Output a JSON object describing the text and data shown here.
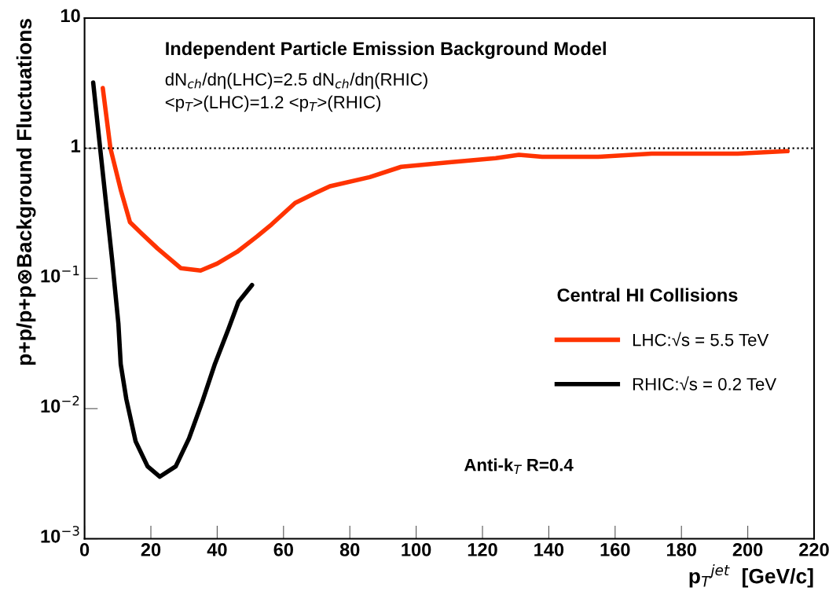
{
  "chart_data": {
    "type": "line",
    "title": "Independent Particle Emission Background Model",
    "subtitle": "dN$_{ch}$/dη(LHC)=2.5 dN$_{ch}$/dη(RHIC)\n<p$_{T}$>(LHC)=1.2 <p$_{T}$>(RHIC)",
    "xlabel": "p$_{T}$$^{jet}$  [GeV/c]",
    "ylabel": "p+p/p+p⊗Background Fluctuations",
    "legend_title": "Central HI Collisions",
    "annotations": [
      "Anti-k$_{T}$ R=0.4"
    ],
    "log": "y",
    "xlim": [
      0,
      220
    ],
    "xticks": [
      0,
      20,
      40,
      60,
      80,
      100,
      120,
      140,
      160,
      180,
      200,
      220
    ],
    "ylim": [
      0.001,
      10
    ],
    "yticks": [
      {
        "value": 0.001,
        "label": "10$^{−3}$"
      },
      {
        "value": 0.01,
        "label": "10$^{−2}$"
      },
      {
        "value": 0.1,
        "label": "10$^{−1}$"
      },
      1,
      10
    ],
    "grid": false,
    "legend": "right",
    "line_style": "solid",
    "marker": "none",
    "ref_lines": [
      {
        "axis": "y",
        "value": 1,
        "line_style": "dotted",
        "color": "#000000"
      }
    ],
    "series": [
      {
        "name": "LHC:√s = 5.5 TeV",
        "color": "#ff3300",
        "x": [
          5.5,
          7.8,
          10.9,
          13.7,
          17.3,
          22,
          29,
          35,
          40,
          46,
          52,
          56.4,
          63.5,
          69.4,
          74,
          86,
          95.5,
          110,
          124,
          131,
          138,
          155,
          171,
          197,
          212
        ],
        "values": [
          2.9,
          1.0,
          0.48,
          0.27,
          0.22,
          0.17,
          0.12,
          0.115,
          0.13,
          0.16,
          0.21,
          0.26,
          0.38,
          0.45,
          0.51,
          0.6,
          0.72,
          0.78,
          0.84,
          0.89,
          0.86,
          0.86,
          0.91,
          0.91,
          0.95
        ]
      },
      {
        "name": "RHIC:√s = 0.2 TeV",
        "color": "#000000",
        "x": [
          2.6,
          4.7,
          8.3,
          10.2,
          10.9,
          12.6,
          15.4,
          19,
          22.7,
          27.5,
          31.5,
          35.5,
          39.3,
          43.4,
          46.4,
          50.5
        ],
        "values": [
          3.2,
          1.0,
          0.14,
          0.045,
          0.022,
          0.0118,
          0.0056,
          0.0036,
          0.003,
          0.0036,
          0.0059,
          0.0113,
          0.022,
          0.041,
          0.066,
          0.089
        ]
      }
    ]
  }
}
